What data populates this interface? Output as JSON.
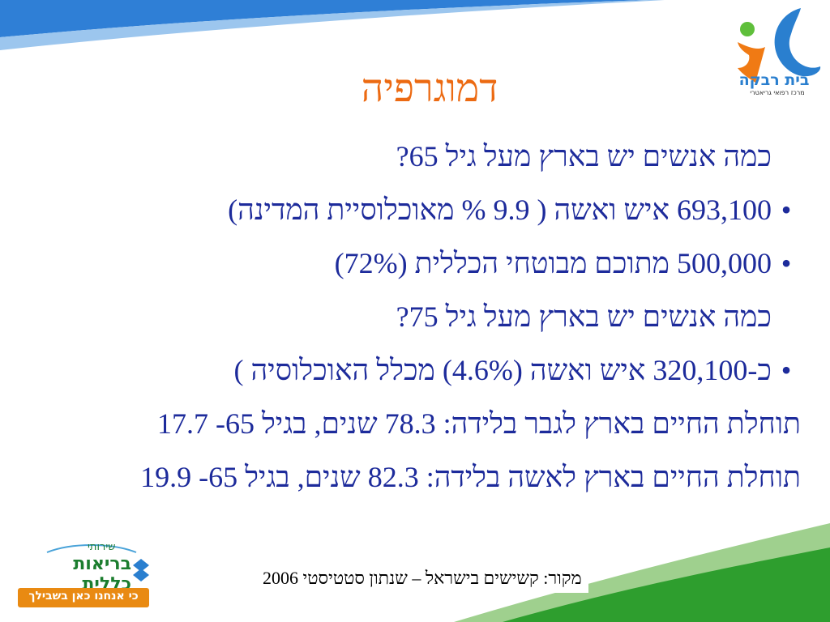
{
  "slide": {
    "title": "דמוגרפיה",
    "lines": [
      {
        "kind": "plain",
        "text": "כמה אנשים יש בארץ מעל גיל 65?"
      },
      {
        "kind": "bullet",
        "text": "693,100 איש ואשה ( 9.9 % מאוכלוסיית המדינה)"
      },
      {
        "kind": "bullet",
        "text": "500,000 מתוכם מבוטחי הכללית (72%)"
      },
      {
        "kind": "plain",
        "text": "כמה אנשים יש בארץ מעל גיל 75?"
      },
      {
        "kind": "bullet",
        "text": "כ-320,100 איש ואשה (4.6%) מכלל האוכלוסיה )"
      },
      {
        "kind": "plain",
        "text": "תוחלת החיים בארץ לגבר בלידה: 78.3 שנים, בגיל 65- 17.7"
      },
      {
        "kind": "plain",
        "text": "תוחלת החיים בארץ לאשה בלידה: 82.3 שנים, בגיל 65- 19.9"
      }
    ],
    "bullet_glyph": "•",
    "source": "מקור: קשישים בישראל – שנתון סטטיסטי 2006"
  },
  "logos": {
    "beit_rivka_name": "בית רבקה",
    "beit_rivka_sub": "מרכז רפואי גריאטרי",
    "clalit_top": "שירותי",
    "clalit_name": "בריאות כללית",
    "clalit_slogan": "כי אנחנו כאן בשבילך"
  },
  "colors": {
    "title": "#ec6a12",
    "text": "#1d2b9b",
    "bg_blue": "#2f7fd6",
    "bg_green": "#2e9e2e"
  }
}
